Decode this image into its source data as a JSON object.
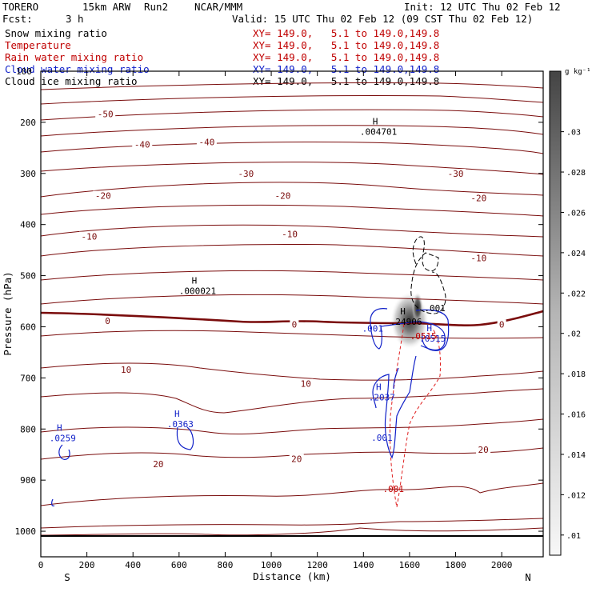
{
  "header": {
    "model": "TORERO",
    "resolution": "15km ARW",
    "run": "Run2",
    "org": "NCAR/MMM",
    "init": "Init: 12 UTC Thu 02 Feb 12",
    "fcst_label": "Fcst:",
    "fcst_value": "3 h",
    "valid": "Valid: 15 UTC Thu 02 Feb 12 (09 CST Thu 02 Feb 12)"
  },
  "fields": [
    {
      "name": "Snow mixing ratio",
      "xy": "XY= 149.0,   5.1 to 149.0,149.8",
      "color": "#000000"
    },
    {
      "name": "Temperature",
      "xy": "XY= 149.0,   5.1 to 149.0,149.8",
      "color": "#c00000"
    },
    {
      "name": "Rain water mixing ratio",
      "xy": "XY= 149.0,   5.1 to 149.0,149.8",
      "color": "#c00000"
    },
    {
      "name": "Cloud water mixing ratio",
      "xy": "XY= 149.0,   5.1 to 149.0,149.8",
      "color": "#1020c8"
    },
    {
      "name": "Cloud ice mixing ratio",
      "xy": "XY= 149.0,   5.1 to 149.0,149.8",
      "color": "#000000"
    }
  ],
  "chart_data": {
    "type": "cross-section",
    "xlabel": "Distance (km)",
    "ylabel": "Pressure (hPa)",
    "xlim": [
      0,
      2180
    ],
    "ylim": [
      1050,
      100
    ],
    "x_ticks": [
      0,
      200,
      400,
      600,
      800,
      1000,
      1200,
      1400,
      1600,
      1800,
      2000
    ],
    "y_ticks": [
      200,
      300,
      400,
      500,
      600,
      700,
      800,
      900,
      1000
    ],
    "y_top_label": "100",
    "left_end_label": "S",
    "right_end_label": "N",
    "colorbar": {
      "unit": "g kg⁻¹",
      "ticks": [
        ".01",
        ".012",
        ".014",
        ".016",
        ".018",
        ".02",
        ".022",
        ".024",
        ".026",
        ".028",
        ".03"
      ],
      "ticks_numeric": [
        0.01,
        0.012,
        0.014,
        0.016,
        0.018,
        0.02,
        0.022,
        0.024,
        0.026,
        0.028,
        0.03
      ],
      "range": [
        0.009,
        0.033
      ]
    },
    "temperature_labels": [
      {
        "text": "-50",
        "x": 280,
        "p": 185
      },
      {
        "text": "-40",
        "x": 440,
        "p": 245
      },
      {
        "text": "-40",
        "x": 720,
        "p": 240
      },
      {
        "text": "-30",
        "x": 890,
        "p": 302
      },
      {
        "text": "-30",
        "x": 1800,
        "p": 302
      },
      {
        "text": "-20",
        "x": 270,
        "p": 345
      },
      {
        "text": "-20",
        "x": 1050,
        "p": 345
      },
      {
        "text": "-20",
        "x": 1900,
        "p": 350
      },
      {
        "text": "-10",
        "x": 210,
        "p": 425
      },
      {
        "text": "-10",
        "x": 1080,
        "p": 420
      },
      {
        "text": "-10",
        "x": 1900,
        "p": 467
      },
      {
        "text": "0",
        "x": 290,
        "p": 590
      },
      {
        "text": "0",
        "x": 1100,
        "p": 597
      },
      {
        "text": "0",
        "x": 2000,
        "p": 597
      },
      {
        "text": "10",
        "x": 370,
        "p": 685
      },
      {
        "text": "10",
        "x": 1150,
        "p": 713
      },
      {
        "text": "20",
        "x": 510,
        "p": 870
      },
      {
        "text": "20",
        "x": 1110,
        "p": 860
      },
      {
        "text": "20",
        "x": 1920,
        "p": 842
      }
    ],
    "max_labels": [
      {
        "text": "H",
        "value": ".004701",
        "x": 1465,
        "p": 210
      },
      {
        "text": "H",
        "value": ".000021",
        "x": 680,
        "p": 522
      },
      {
        "text": "H",
        "value": ".0259",
        "x": 95,
        "p": 810
      },
      {
        "text": "H",
        "value": ".0363",
        "x": 605,
        "p": 782
      },
      {
        "text": "H",
        "value": ".2037",
        "x": 1480,
        "p": 730
      },
      {
        "text": "H",
        "value": ".24906",
        "x": 1585,
        "p": 582
      },
      {
        "text": "H",
        "value": ".0515",
        "x": 1700,
        "p": 615
      }
    ],
    "contour_labels": [
      {
        "text": ".001",
        "x": 1440,
        "p": 603,
        "color": "#1020c8"
      },
      {
        "text": ".001",
        "x": 1480,
        "p": 817,
        "color": "#1020c8"
      },
      {
        "text": ".001",
        "x": 1710,
        "p": 563,
        "color": "#000000"
      },
      {
        "text": ".0515",
        "x": 1660,
        "p": 618,
        "color": "#c00000"
      },
      {
        "text": ".001",
        "x": 1530,
        "p": 917,
        "color": "#c00000"
      }
    ],
    "surface_p": 1010
  }
}
